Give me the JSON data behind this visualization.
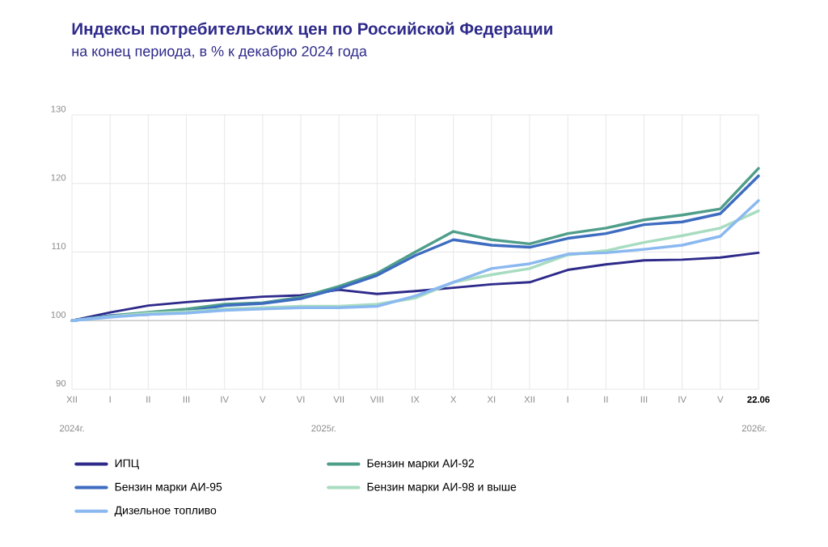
{
  "chart_data": {
    "type": "line",
    "title": "Индексы потребительских цен по Российской Федерации",
    "subtitle": "на конец периода, в % к декабрю 2024 года",
    "categories": [
      "XII",
      "I",
      "II",
      "III",
      "IV",
      "V",
      "VI",
      "VII",
      "VIII",
      "IX",
      "X",
      "XI",
      "XII",
      "I",
      "II",
      "III",
      "IV",
      "V",
      "22.06"
    ],
    "series": [
      {
        "name": "ИПЦ",
        "color": "#2e2a8a",
        "values": [
          100,
          101.2,
          102.2,
          102.7,
          103.1,
          103.5,
          103.7,
          104.5,
          103.9,
          104.3,
          104.8,
          105.3,
          105.6,
          107.4,
          108.2,
          108.8,
          108.9,
          109.2,
          109.9
        ]
      },
      {
        "name": "Бензин марки АИ-92",
        "color": "#4f9e8a",
        "values": [
          100,
          100.7,
          101.2,
          101.7,
          102.4,
          102.6,
          103.4,
          105.0,
          106.9,
          110.0,
          113.0,
          111.8,
          111.2,
          112.7,
          113.5,
          114.7,
          115.4,
          116.3,
          122.2
        ]
      },
      {
        "name": "Бензин марки АИ-95",
        "color": "#3d6cc0",
        "values": [
          100,
          100.7,
          100.9,
          101.3,
          102.2,
          102.5,
          103.2,
          104.7,
          106.6,
          109.5,
          111.8,
          111.0,
          110.7,
          112.0,
          112.7,
          114.0,
          114.4,
          115.6,
          121.1
        ]
      },
      {
        "name": "Бензин марки АИ-98 и выше",
        "color": "#a8dcc0",
        "values": [
          100,
          100.6,
          101.1,
          101.3,
          101.7,
          101.9,
          102.1,
          102.1,
          102.4,
          103.3,
          105.6,
          106.7,
          107.6,
          109.6,
          110.2,
          111.4,
          112.4,
          113.5,
          116.0
        ]
      },
      {
        "name": "Дизельное топливо",
        "color": "#8ab8f0",
        "values": [
          100,
          100.5,
          100.9,
          101.1,
          101.5,
          101.7,
          101.9,
          101.9,
          102.1,
          103.6,
          105.6,
          107.6,
          108.3,
          109.7,
          109.9,
          110.4,
          111.0,
          112.3,
          117.5
        ]
      }
    ],
    "ylim": [
      90,
      130
    ],
    "yticks": [
      90,
      100,
      110,
      120,
      130
    ],
    "grid": true,
    "legend": "bottom",
    "ref_lines": [
      {
        "axis": "y",
        "value": 100,
        "color": "#c8c8c8"
      }
    ],
    "annotations": [
      "2024г.",
      "2025г.",
      "2026г."
    ]
  }
}
